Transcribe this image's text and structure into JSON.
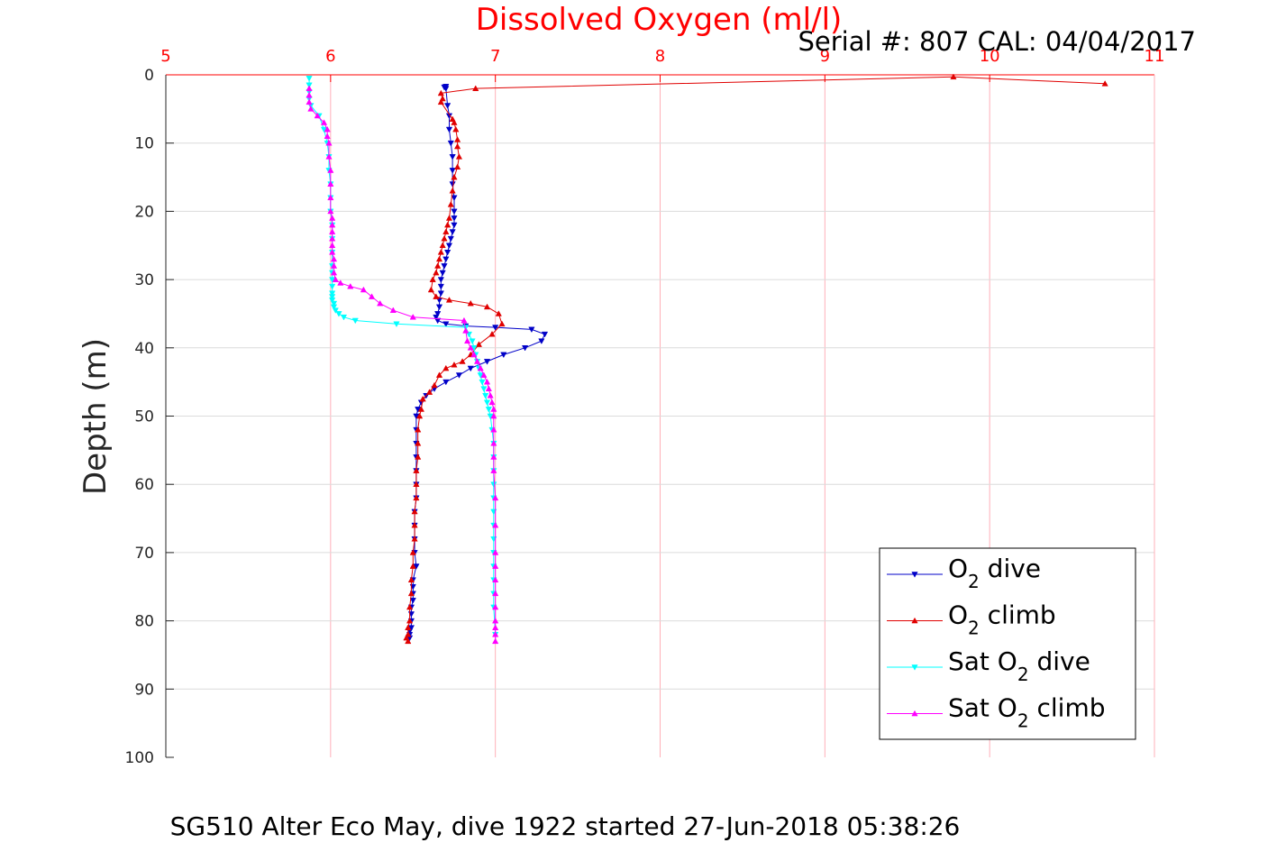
{
  "chart_data": {
    "type": "line",
    "title": "Dissolved Oxygen (ml/l)",
    "subtitle": "Serial #: 807  CAL: 04/04/2017",
    "xlabel": "",
    "ylabel": "Depth (m)",
    "caption": "SG510 Alter Eco May, dive 1922 started 27-Jun-2018 05:38:26",
    "xlim": [
      5,
      11
    ],
    "ylim": [
      0,
      100
    ],
    "y_reversed": true,
    "x_axis_position": "top",
    "xticks": [
      "5",
      "6",
      "7",
      "8",
      "9",
      "10",
      "11"
    ],
    "yticks": [
      "0",
      "10",
      "20",
      "30",
      "40",
      "50",
      "60",
      "70",
      "80",
      "90",
      "100"
    ],
    "grid": true,
    "legend_position": "bottom-right",
    "colors": {
      "title": "#ff0000",
      "xticks": "#ff0000",
      "grid_x": "#ffb0b8",
      "grid_y": "#dcdcdc"
    },
    "series": [
      {
        "name": "O2 dive",
        "legend_main": "O",
        "legend_sub": "2",
        "legend_suffix": " dive",
        "color": "#0000c8",
        "marker": "triangle-down",
        "x": [
          6.7,
          6.69,
          6.7,
          6.71,
          6.72,
          6.72,
          6.73,
          6.74,
          6.74,
          6.74,
          6.75,
          6.75,
          6.75,
          6.75,
          6.74,
          6.73,
          6.72,
          6.71,
          6.7,
          6.69,
          6.68,
          6.67,
          6.67,
          6.67,
          6.66,
          6.66,
          6.65,
          6.64,
          6.65,
          6.7,
          6.82,
          7.0,
          7.22,
          7.3,
          7.28,
          7.18,
          7.05,
          6.95,
          6.85,
          6.78,
          6.7,
          6.63,
          6.58,
          6.55,
          6.53,
          6.52,
          6.52,
          6.52,
          6.52,
          6.52,
          6.52,
          6.52,
          6.51,
          6.51,
          6.51,
          6.51,
          6.52,
          6.5,
          6.5,
          6.5,
          6.5,
          6.49,
          6.49,
          6.49,
          6.49,
          6.48,
          6.48,
          6.48
        ],
        "y": [
          1.7,
          1.8,
          2.0,
          4.5,
          6.0,
          8.0,
          10.0,
          12.0,
          14.0,
          16.0,
          18.0,
          20.0,
          21.0,
          22.0,
          23.0,
          24.0,
          25.0,
          26.0,
          27.0,
          28.0,
          29.0,
          30.0,
          31.0,
          32.0,
          33.0,
          34.0,
          35.0,
          35.5,
          36.0,
          36.5,
          36.8,
          37.0,
          37.3,
          38.0,
          39.0,
          40.0,
          41.0,
          42.0,
          43.0,
          44.0,
          45.0,
          46.0,
          47.0,
          48.0,
          49.0,
          50.0,
          52.0,
          54.0,
          56.0,
          58.0,
          60.0,
          62.0,
          64.0,
          66.0,
          68.0,
          70.0,
          72.0,
          74.0,
          75.0,
          76.0,
          77.0,
          78.0,
          79.0,
          80.0,
          81.0,
          81.5,
          82.0,
          82.5
        ]
      },
      {
        "name": "O2 climb",
        "legend_main": "O",
        "legend_sub": "2",
        "legend_suffix": " climb",
        "color": "#e00000",
        "marker": "triangle-up",
        "x": [
          6.47,
          6.46,
          6.47,
          6.47,
          6.48,
          6.48,
          6.49,
          6.49,
          6.5,
          6.5,
          6.51,
          6.51,
          6.51,
          6.52,
          6.52,
          6.52,
          6.53,
          6.53,
          6.53,
          6.54,
          6.55,
          6.56,
          6.6,
          6.63,
          6.66,
          6.7,
          6.75,
          6.8,
          6.85,
          6.9,
          6.98,
          7.04,
          7.02,
          6.95,
          6.85,
          6.72,
          6.64,
          6.61,
          6.62,
          6.64,
          6.65,
          6.66,
          6.67,
          6.68,
          6.69,
          6.7,
          6.71,
          6.72,
          6.73,
          6.74,
          6.75,
          6.77,
          6.78,
          6.77,
          6.77,
          6.76,
          6.75,
          6.74,
          6.67,
          6.68,
          6.67,
          6.88,
          9.78,
          10.7
        ],
        "y": [
          83.0,
          82.5,
          82.0,
          81.0,
          80.0,
          78.0,
          76.0,
          74.0,
          72.0,
          70.0,
          68.0,
          66.0,
          64.0,
          62.0,
          60.0,
          58.0,
          56.0,
          54.0,
          52.0,
          50.0,
          49.0,
          47.5,
          46.5,
          45.5,
          44.0,
          43.0,
          42.5,
          42.0,
          41.0,
          39.5,
          38.0,
          36.5,
          35.0,
          34.0,
          33.5,
          33.0,
          32.5,
          31.5,
          30.0,
          29.0,
          28.0,
          27.0,
          26.0,
          25.0,
          24.0,
          23.0,
          22.0,
          21.0,
          19.0,
          17.0,
          15.0,
          13.5,
          12.0,
          10.5,
          9.5,
          8.0,
          7.0,
          6.5,
          4.0,
          3.5,
          2.7,
          2.0,
          0.3,
          1.3
        ]
      },
      {
        "name": "Sat O2 dive",
        "legend_main": "Sat O",
        "legend_sub": "2",
        "legend_suffix": " dive",
        "color": "#00ffff",
        "marker": "triangle-down",
        "x": [
          5.87,
          5.87,
          5.87,
          5.87,
          5.88,
          5.93,
          5.96,
          5.98,
          5.99,
          5.99,
          6.0,
          6.0,
          6.0,
          6.01,
          6.01,
          6.01,
          6.01,
          6.01,
          6.01,
          6.01,
          6.01,
          6.01,
          6.01,
          6.02,
          6.02,
          6.03,
          6.05,
          6.08,
          6.15,
          6.4,
          6.82,
          6.84,
          6.86,
          6.87,
          6.88,
          6.89,
          6.9,
          6.91,
          6.92,
          6.93,
          6.94,
          6.95,
          6.96,
          6.97,
          6.98,
          6.99,
          6.99,
          6.99,
          6.99,
          6.99,
          6.99,
          6.99,
          6.99,
          6.99,
          6.99,
          6.99,
          6.99,
          6.99,
          7.0
        ],
        "y": [
          0.5,
          1.5,
          2.5,
          3.5,
          4.5,
          6.0,
          8.0,
          10.0,
          12.0,
          14.0,
          16.0,
          18.0,
          20.0,
          22.0,
          24.0,
          26.0,
          28.0,
          29.0,
          30.0,
          31.0,
          32.0,
          32.5,
          33.0,
          33.5,
          34.0,
          34.5,
          35.0,
          35.5,
          36.0,
          36.5,
          37.0,
          38.0,
          39.0,
          40.0,
          41.0,
          42.0,
          43.0,
          44.0,
          45.0,
          46.0,
          47.0,
          48.0,
          49.0,
          50.0,
          52.0,
          54.0,
          56.0,
          58.0,
          60.0,
          62.0,
          64.0,
          66.0,
          68.0,
          70.0,
          72.0,
          74.0,
          76.0,
          78.0,
          82.0
        ]
      },
      {
        "name": "Sat O2 climb",
        "legend_main": "Sat O",
        "legend_sub": "2",
        "legend_suffix": " climb",
        "color": "#ff00ff",
        "marker": "triangle-up",
        "x": [
          7.0,
          7.0,
          7.0,
          7.0,
          7.0,
          7.0,
          7.0,
          7.0,
          7.0,
          7.0,
          7.0,
          6.99,
          6.99,
          6.99,
          6.99,
          6.99,
          6.99,
          6.98,
          6.97,
          6.96,
          6.95,
          6.93,
          6.91,
          6.89,
          6.87,
          6.85,
          6.83,
          6.82,
          6.81,
          6.5,
          6.38,
          6.3,
          6.25,
          6.2,
          6.12,
          6.06,
          6.03,
          6.02,
          6.02,
          6.02,
          6.01,
          6.01,
          6.01,
          6.01,
          6.01,
          6.01,
          6.0,
          6.0,
          6.0,
          6.0,
          5.99,
          5.99,
          5.98,
          5.98,
          5.96,
          5.92,
          5.88,
          5.87,
          5.87,
          5.87
        ],
        "y": [
          83.0,
          82.0,
          81.0,
          80.0,
          78.0,
          76.0,
          74.0,
          72.0,
          70.0,
          66.0,
          62.0,
          58.0,
          56.0,
          54.0,
          52.0,
          50.0,
          49.0,
          48.0,
          47.0,
          46.0,
          45.0,
          44.0,
          43.0,
          42.0,
          41.0,
          40.0,
          39.0,
          37.5,
          36.0,
          35.5,
          34.5,
          33.5,
          32.5,
          31.5,
          31.0,
          30.5,
          30.0,
          29.0,
          28.0,
          27.0,
          26.0,
          25.0,
          24.0,
          23.0,
          22.0,
          21.0,
          20.0,
          18.0,
          16.0,
          14.0,
          12.0,
          10.0,
          9.0,
          8.0,
          7.0,
          6.0,
          5.0,
          4.0,
          3.0,
          2.0
        ]
      }
    ]
  }
}
